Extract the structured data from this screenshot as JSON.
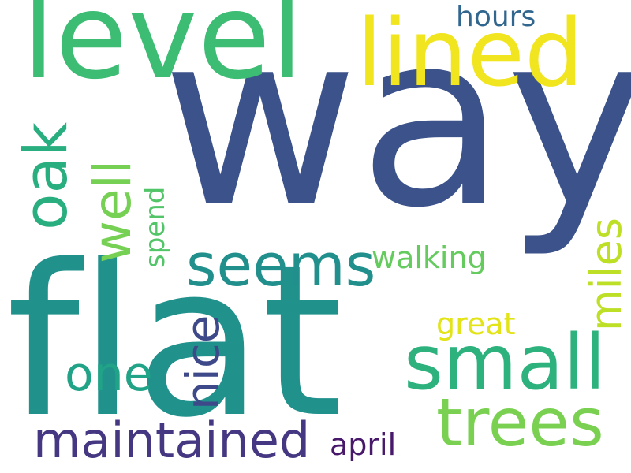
{
  "words": {
    "way": {
      "text": "way",
      "color": "#3b528b"
    },
    "flat": {
      "text": "flat",
      "color": "#21918c"
    },
    "level": {
      "text": "level",
      "color": "#3dbc74"
    },
    "lined": {
      "text": "lined",
      "color": "#f0e51f"
    },
    "hours": {
      "text": "hours",
      "color": "#31668e"
    },
    "oak": {
      "text": "oak",
      "color": "#29ae80"
    },
    "well": {
      "text": "well",
      "color": "#75d054"
    },
    "spend": {
      "text": "spend",
      "color": "#52c569"
    },
    "seems": {
      "text": "seems",
      "color": "#21908d"
    },
    "walking": {
      "text": "walking",
      "color": "#65cb5e"
    },
    "miles": {
      "text": "miles",
      "color": "#bddf26"
    },
    "nice": {
      "text": "nice",
      "color": "#3e4989"
    },
    "great": {
      "text": "great",
      "color": "#e2e418"
    },
    "small": {
      "text": "small",
      "color": "#2db27d"
    },
    "one": {
      "text": "one",
      "color": "#20a386"
    },
    "trees": {
      "text": "trees",
      "color": "#7ad151"
    },
    "maintained": {
      "text": "maintained",
      "color": "#453781"
    },
    "april": {
      "text": "april",
      "color": "#48186a"
    }
  }
}
